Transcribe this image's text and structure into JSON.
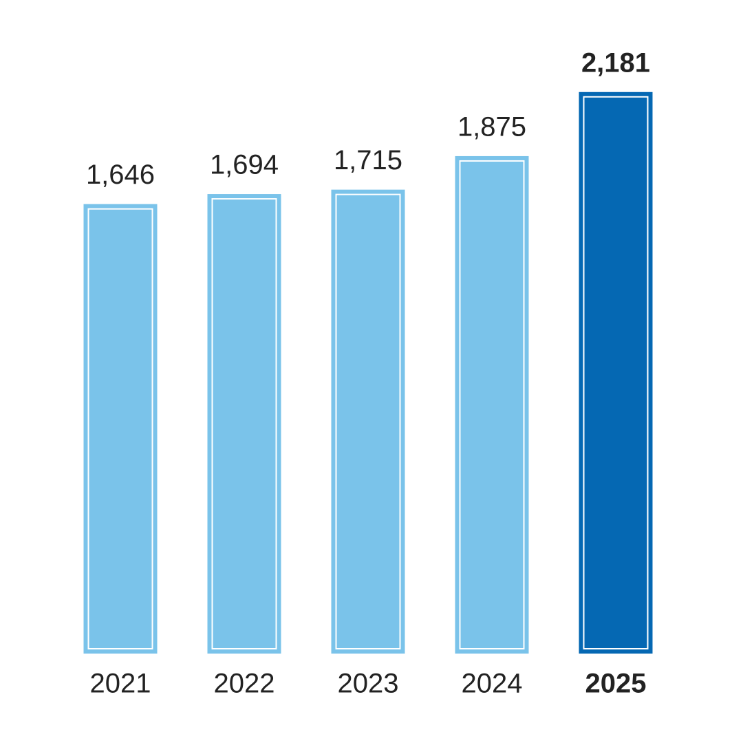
{
  "chart_data": {
    "type": "bar",
    "categories": [
      "2021",
      "2022",
      "2023",
      "2024",
      "2025"
    ],
    "values": [
      1646,
      1694,
      1715,
      1875,
      2181
    ],
    "value_labels": [
      "1,646",
      "1,694",
      "1,715",
      "1,875",
      "2,181"
    ],
    "colors": [
      "#7ac3ea",
      "#7ac3ea",
      "#7ac3ea",
      "#7ac3ea",
      "#0568b3"
    ],
    "bold": [
      false,
      false,
      false,
      false,
      true
    ],
    "ylim": [
      -500,
      2200
    ]
  }
}
